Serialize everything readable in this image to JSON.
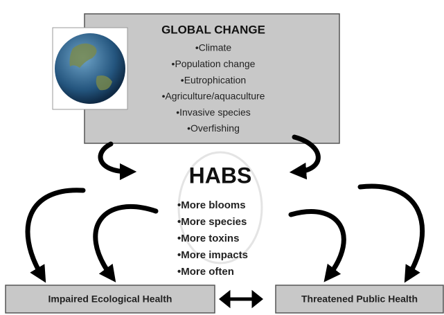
{
  "global_change": {
    "title": "GLOBAL CHANGE",
    "items": [
      "•Climate",
      "•Population change",
      "•Eutrophication",
      "•Agriculture/aquaculture",
      "•Invasive species",
      "•Overfishing"
    ]
  },
  "habs": {
    "title": "HABS",
    "items": [
      "•More blooms",
      "•More species",
      "•More toxins",
      "•More impacts",
      "•More often"
    ]
  },
  "outcomes": {
    "left": "Impaired Ecological Health",
    "right": "Threatened Public Health"
  }
}
